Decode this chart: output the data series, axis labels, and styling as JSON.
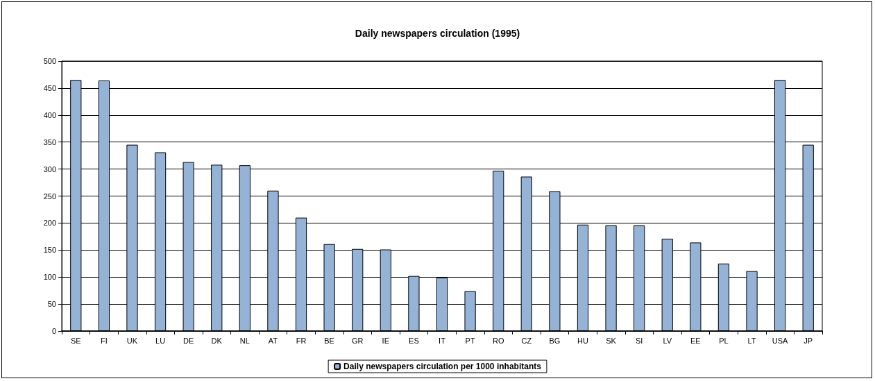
{
  "chart_data": {
    "type": "bar",
    "title": "Daily newspapers circulation (1995)",
    "categories": [
      "SE",
      "FI",
      "UK",
      "LU",
      "DE",
      "DK",
      "NL",
      "AT",
      "FR",
      "BE",
      "GR",
      "IE",
      "ES",
      "IT",
      "PT",
      "RO",
      "CZ",
      "BG",
      "HU",
      "SK",
      "SI",
      "LV",
      "EE",
      "PL",
      "LT",
      "USA",
      "JP"
    ],
    "series": [
      {
        "name": "Daily newspapers circulation per 1000 inhabitants",
        "color": "#95b3d7",
        "values": [
          465,
          464,
          345,
          331,
          313,
          308,
          307,
          260,
          210,
          161,
          152,
          151,
          102,
          99,
          74,
          297,
          286,
          259,
          197,
          196,
          196,
          171,
          164,
          125,
          111,
          465,
          345
        ]
      }
    ],
    "ylim": [
      0,
      500
    ],
    "yticks": [
      0,
      50,
      100,
      150,
      200,
      250,
      300,
      350,
      400,
      450,
      500
    ],
    "grid": "y",
    "legend": "bottom"
  }
}
